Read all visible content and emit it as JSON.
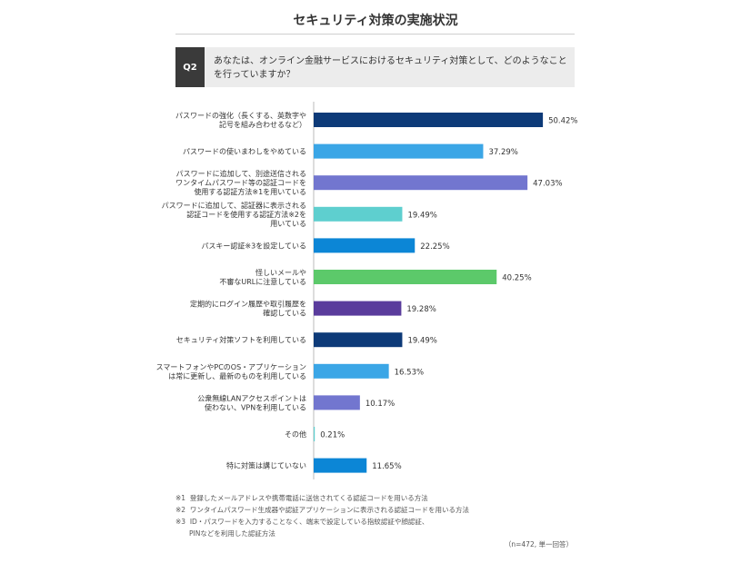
{
  "title": "セキュリティ対策の実施状況",
  "question": {
    "label": "Q2",
    "text": "あなたは、オンライン金融サービスにおけるセキュリティ対策として、どのようなことを行っていますか？"
  },
  "chart_data": {
    "type": "bar",
    "orientation": "horizontal",
    "title": "セキュリティ対策の実施状況",
    "xlim": [
      0,
      60
    ],
    "unit": "%",
    "categories": [
      [
        "パスワードの強化（長くする、英数字や",
        "記号を組み合わせるなど）"
      ],
      [
        "パスワードの使いまわしをやめている"
      ],
      [
        "パスワードに追加して、別途送信される",
        "ワンタイムパスワード等の認証コードを",
        "使用する認証方法※1を用いている"
      ],
      [
        "パスワードに追加して、認証器に表示される",
        "認証コードを使用する認証方法※2を",
        "用いている"
      ],
      [
        "パスキー認証※3を設定している"
      ],
      [
        "怪しいメールや",
        "不審なURLに注意している"
      ],
      [
        "定期的にログイン履歴や取引履歴を",
        "確認している"
      ],
      [
        "セキュリティ対策ソフトを利用している"
      ],
      [
        "スマートフォンやPCのOS・アプリケーション",
        "は常に更新し、最新のものを利用している"
      ],
      [
        "公衆無線LANアクセスポイントは",
        "使わない、VPNを利用している"
      ],
      [
        "その他"
      ],
      [
        "特に対策は講じていない"
      ]
    ],
    "values": [
      50.42,
      37.29,
      47.03,
      19.49,
      22.25,
      40.25,
      19.28,
      19.49,
      16.53,
      10.17,
      0.21,
      11.65
    ],
    "labels": [
      "50.42%",
      "37.29%",
      "47.03%",
      "19.49%",
      "22.25%",
      "40.25%",
      "19.28%",
      "19.49%",
      "16.53%",
      "10.17%",
      "0.21%",
      "11.65%"
    ],
    "colors": [
      "#0d3a78",
      "#3ba6e6",
      "#7276cf",
      "#5ecfcf",
      "#0c86d6",
      "#5cc96a",
      "#5a3c9c",
      "#0d3a78",
      "#3ba6e6",
      "#7276cf",
      "#5ecfcf",
      "#0c86d6"
    ]
  },
  "notes": [
    "※1  登録したメールアドレスや携帯電話に送信されてくる認証コードを用いる方法",
    "※2  ワンタイムパスワード生成器や認証アプリケーションに表示される認証コードを用いる方法",
    "※3  ID・パスワードを入力することなく、端末で設定している指紋認証や顔認証、",
    "PINなどを利用した認証方法"
  ],
  "sample": "（n=472, 単一回答）"
}
